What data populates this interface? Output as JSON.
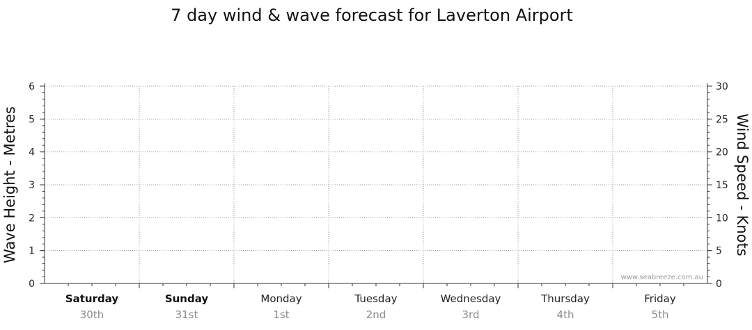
{
  "chart_data": {
    "type": "line",
    "title": "7 day wind & wave forecast for Laverton Airport",
    "left_axis": {
      "label": "Wave Height - Metres",
      "ylim": [
        0,
        6
      ],
      "ticks": [
        "0",
        "1",
        "2",
        "3",
        "4",
        "5",
        "6"
      ]
    },
    "right_axis": {
      "label": "Wind Speed - Knots",
      "ylim": [
        0,
        30
      ],
      "ticks": [
        "0",
        "5",
        "10",
        "15",
        "20",
        "25",
        "30"
      ]
    },
    "days": [
      {
        "day": "Saturday",
        "date": "30th",
        "bold": true
      },
      {
        "day": "Sunday",
        "date": "31st",
        "bold": true
      },
      {
        "day": "Monday",
        "date": "1st",
        "bold": false
      },
      {
        "day": "Tuesday",
        "date": "2nd",
        "bold": false
      },
      {
        "day": "Wednesday",
        "date": "3rd",
        "bold": false
      },
      {
        "day": "Thursday",
        "date": "4th",
        "bold": false
      },
      {
        "day": "Friday",
        "date": "5th",
        "bold": false
      }
    ],
    "series": [],
    "grid": true,
    "watermark": "www.seabreeze.com.au"
  }
}
